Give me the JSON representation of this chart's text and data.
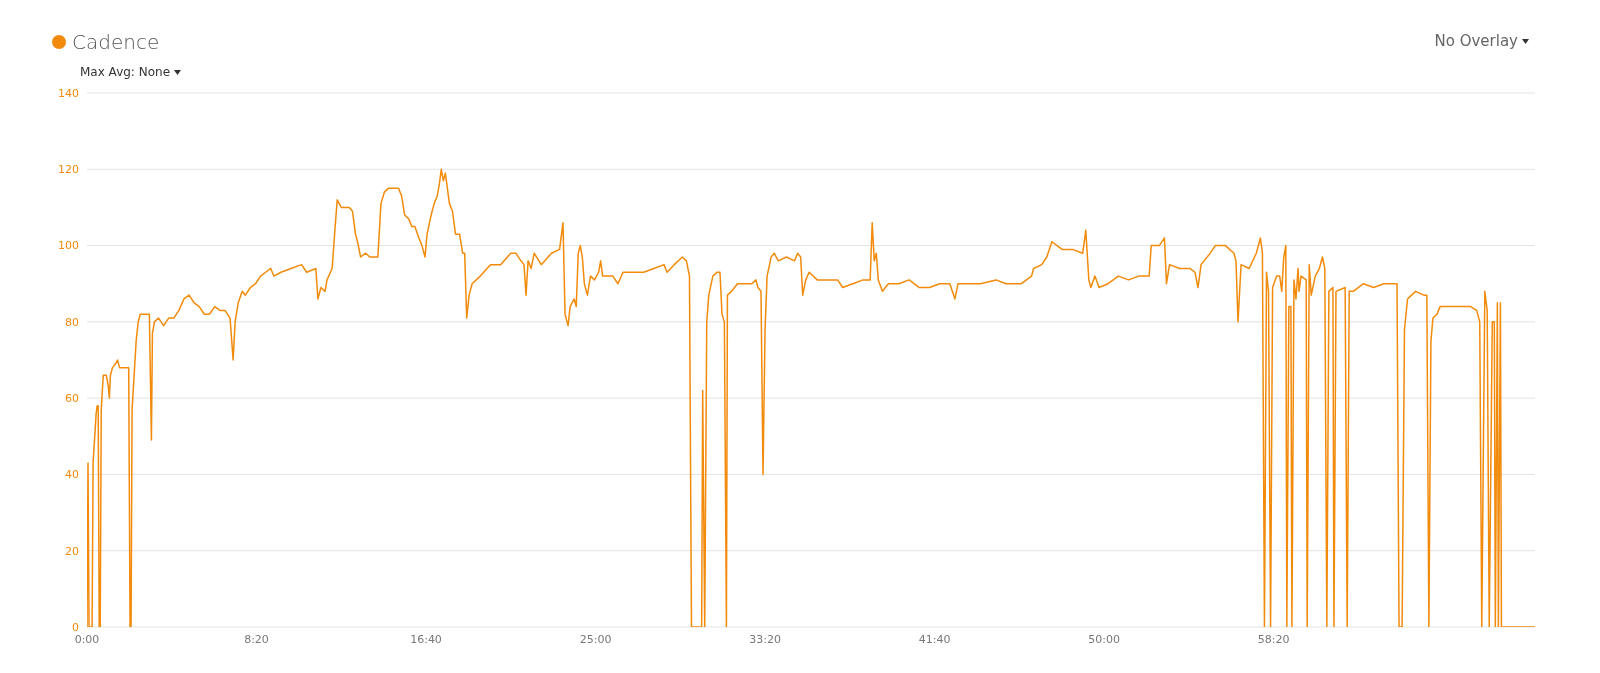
{
  "chart_data": {
    "type": "line",
    "title": "Cadence",
    "color": "#f28b0c",
    "annotations": [
      "Max Avg: None",
      "No Overlay"
    ],
    "x": [
      0,
      3,
      6,
      15,
      18,
      27,
      30,
      33,
      36,
      39,
      42,
      48,
      57,
      63,
      66,
      69,
      75,
      84,
      90,
      96,
      123,
      127,
      130,
      133,
      145,
      151,
      157,
      184,
      190,
      193,
      199,
      211,
      226,
      241,
      256,
      271,
      286,
      301,
      316,
      331,
      346,
      361,
      377,
      392,
      407,
      422,
      431,
      437,
      446,
      458,
      467,
      482,
      497,
      512,
      527,
      542,
      551,
      572,
      602,
      633,
      648,
      675,
      681,
      690,
      702,
      708,
      723,
      732,
      738,
      750,
      774,
      783,
      792,
      798,
      807,
      822,
      834,
      858,
      867,
      877,
      889,
      919,
      928,
      937,
      949,
      958,
      967,
      979,
      988,
      997,
      1003,
      1015,
      1024,
      1033,
      1039,
      1045,
      1051,
      1057,
      1069,
      1078,
      1087,
      1099,
      1108,
      1114,
      1120,
      1127,
      1136,
      1160,
      1190,
      1220,
      1250,
      1265,
      1280,
      1289,
      1295,
      1301,
      1310,
      1319,
      1340,
      1370,
      1394,
      1404,
      1410,
      1419,
      1425,
      1437,
      1443,
      1449,
      1455,
      1461,
      1467,
      1476,
      1485,
      1497,
      1509,
      1515,
      1521,
      1551,
      1566,
      1581,
      1611,
      1642,
      1672,
      1702,
      1711,
      1732,
      1756,
      1768,
      1777,
      1783,
      1813,
      1816,
      1822,
      1828,
      1834,
      1846,
      1858,
      1867,
      1873,
      1880,
      1886,
      1889,
      1901,
      1919,
      1943,
      1961,
      1973,
      1979,
      1988,
      1994,
      2000,
      2006,
      2018,
      2027,
      2039,
      2063,
      2087,
      2096,
      2105,
      2111,
      2120,
      2130,
      2154,
      2184,
      2214,
      2229,
      2259,
      2289,
      2310,
      2316,
      2322,
      2328,
      2334,
      2346,
      2364,
      2395,
      2425,
      2455,
      2485,
      2515,
      2545,
      2560,
      2569,
      2605,
      2636,
      2681,
      2711,
      2756,
      2786,
      2792,
      2816,
      2831,
      2846,
      2876,
      2907,
      2937,
      2946,
      2955,
      2961,
      2973,
      2985,
      3012,
      3042,
      3072,
      3102,
      3133,
      3139,
      3163,
      3178,
      3184,
      3193,
      3223,
      3253,
      3268,
      3277,
      3286,
      3313,
      3328,
      3358,
      3383,
      3389,
      3395,
      3404,
      3428,
      3449,
      3461,
      3467,
      3473,
      3479,
      3485,
      3491,
      3497,
      3509,
      3518,
      3524,
      3530,
      3536,
      3539,
      3545,
      3551,
      3554,
      3560,
      3566,
      3572,
      3575,
      3581,
      3596,
      3599,
      3605,
      3611,
      3623,
      3635,
      3644,
      3651,
      3657,
      3663,
      3675,
      3678,
      3684,
      3711,
      3717,
      3723,
      3735,
      3765,
      3795,
      3825,
      3864,
      3870,
      3879,
      3886,
      3895,
      3907,
      3919,
      3943,
      3952,
      3958,
      3964,
      3970,
      3982,
      3991,
      4021,
      4051,
      4081,
      4099,
      4108,
      4114,
      4123,
      4130,
      4136,
      4145,
      4151,
      4154,
      4160,
      4163,
      4169,
      4172,
      4271
    ],
    "values": [
      0,
      43,
      0,
      0,
      43,
      56,
      58,
      58,
      0,
      0,
      57,
      66,
      66,
      63,
      60,
      66,
      68,
      69,
      70,
      68,
      68,
      0,
      0,
      57,
      75,
      80,
      82,
      82,
      49,
      77,
      80,
      81,
      79,
      81,
      81,
      83,
      86,
      87,
      85,
      84,
      82,
      82,
      84,
      83,
      83,
      81,
      70,
      80,
      85,
      88,
      87,
      89,
      90,
      92,
      93,
      94,
      92,
      93,
      94,
      95,
      93,
      94,
      86,
      89,
      88,
      91,
      94,
      105,
      112,
      110,
      110,
      109,
      103,
      101,
      97,
      98,
      97,
      97,
      111,
      114,
      115,
      115,
      113,
      108,
      107,
      105,
      105,
      102,
      100,
      97,
      103,
      108,
      111,
      113,
      116,
      120,
      117,
      119,
      111,
      109,
      103,
      103,
      98,
      98,
      81,
      87,
      90,
      92,
      95,
      95,
      98,
      98,
      96,
      95,
      87,
      96,
      94,
      98,
      95,
      98,
      99,
      106,
      82,
      79,
      84,
      86,
      84,
      98,
      100,
      97,
      90,
      87,
      92,
      91,
      93,
      96,
      92,
      92,
      90,
      93,
      93,
      93,
      94,
      95,
      93,
      95,
      97,
      96,
      92,
      0,
      0,
      62,
      0,
      80,
      87,
      92,
      93,
      93,
      82,
      80,
      0,
      87,
      88,
      90,
      90,
      90,
      91,
      89,
      88,
      40,
      78,
      92,
      97,
      98,
      96,
      97,
      96,
      98,
      97,
      87,
      91,
      93,
      91,
      91,
      91,
      89,
      90,
      91,
      91,
      106,
      96,
      98,
      91,
      88,
      90,
      90,
      91,
      89,
      89,
      90,
      90,
      86,
      90,
      90,
      90,
      91,
      90,
      90,
      92,
      94,
      95,
      97,
      101,
      99,
      99,
      98,
      104,
      91,
      89,
      92,
      89,
      90,
      92,
      91,
      92,
      92,
      100,
      100,
      102,
      90,
      95,
      94,
      94,
      93,
      89,
      95,
      98,
      100,
      100,
      98,
      96,
      80,
      95,
      94,
      98,
      102,
      98,
      0,
      93,
      88,
      0,
      89,
      92,
      92,
      88,
      97,
      100,
      0,
      84,
      84,
      0,
      91,
      86,
      94,
      88,
      92,
      91,
      0,
      95,
      87,
      92,
      94,
      97,
      94,
      0,
      88,
      89,
      0,
      88,
      89,
      0,
      88,
      88,
      90,
      89,
      90,
      90,
      0,
      0,
      78,
      86,
      87,
      88,
      87,
      87,
      0,
      75,
      81,
      82,
      84,
      84,
      84,
      84,
      83,
      80,
      0,
      88,
      83,
      0,
      80,
      80,
      0,
      85,
      0,
      85,
      0,
      0
    ],
    "xlim": [
      0,
      4271
    ],
    "xticks": [
      {
        "value": 0,
        "label": "0:00"
      },
      {
        "value": 500,
        "label": "8:20"
      },
      {
        "value": 1000,
        "label": "16:40"
      },
      {
        "value": 1500,
        "label": "25:00"
      },
      {
        "value": 2000,
        "label": "33:20"
      },
      {
        "value": 2500,
        "label": "41:40"
      },
      {
        "value": 3000,
        "label": "50:00"
      },
      {
        "value": 3500,
        "label": "58:20"
      }
    ],
    "ylim": [
      0,
      140
    ],
    "yticks": [
      0,
      20,
      40,
      60,
      80,
      100,
      120,
      140
    ],
    "grid": "y"
  }
}
